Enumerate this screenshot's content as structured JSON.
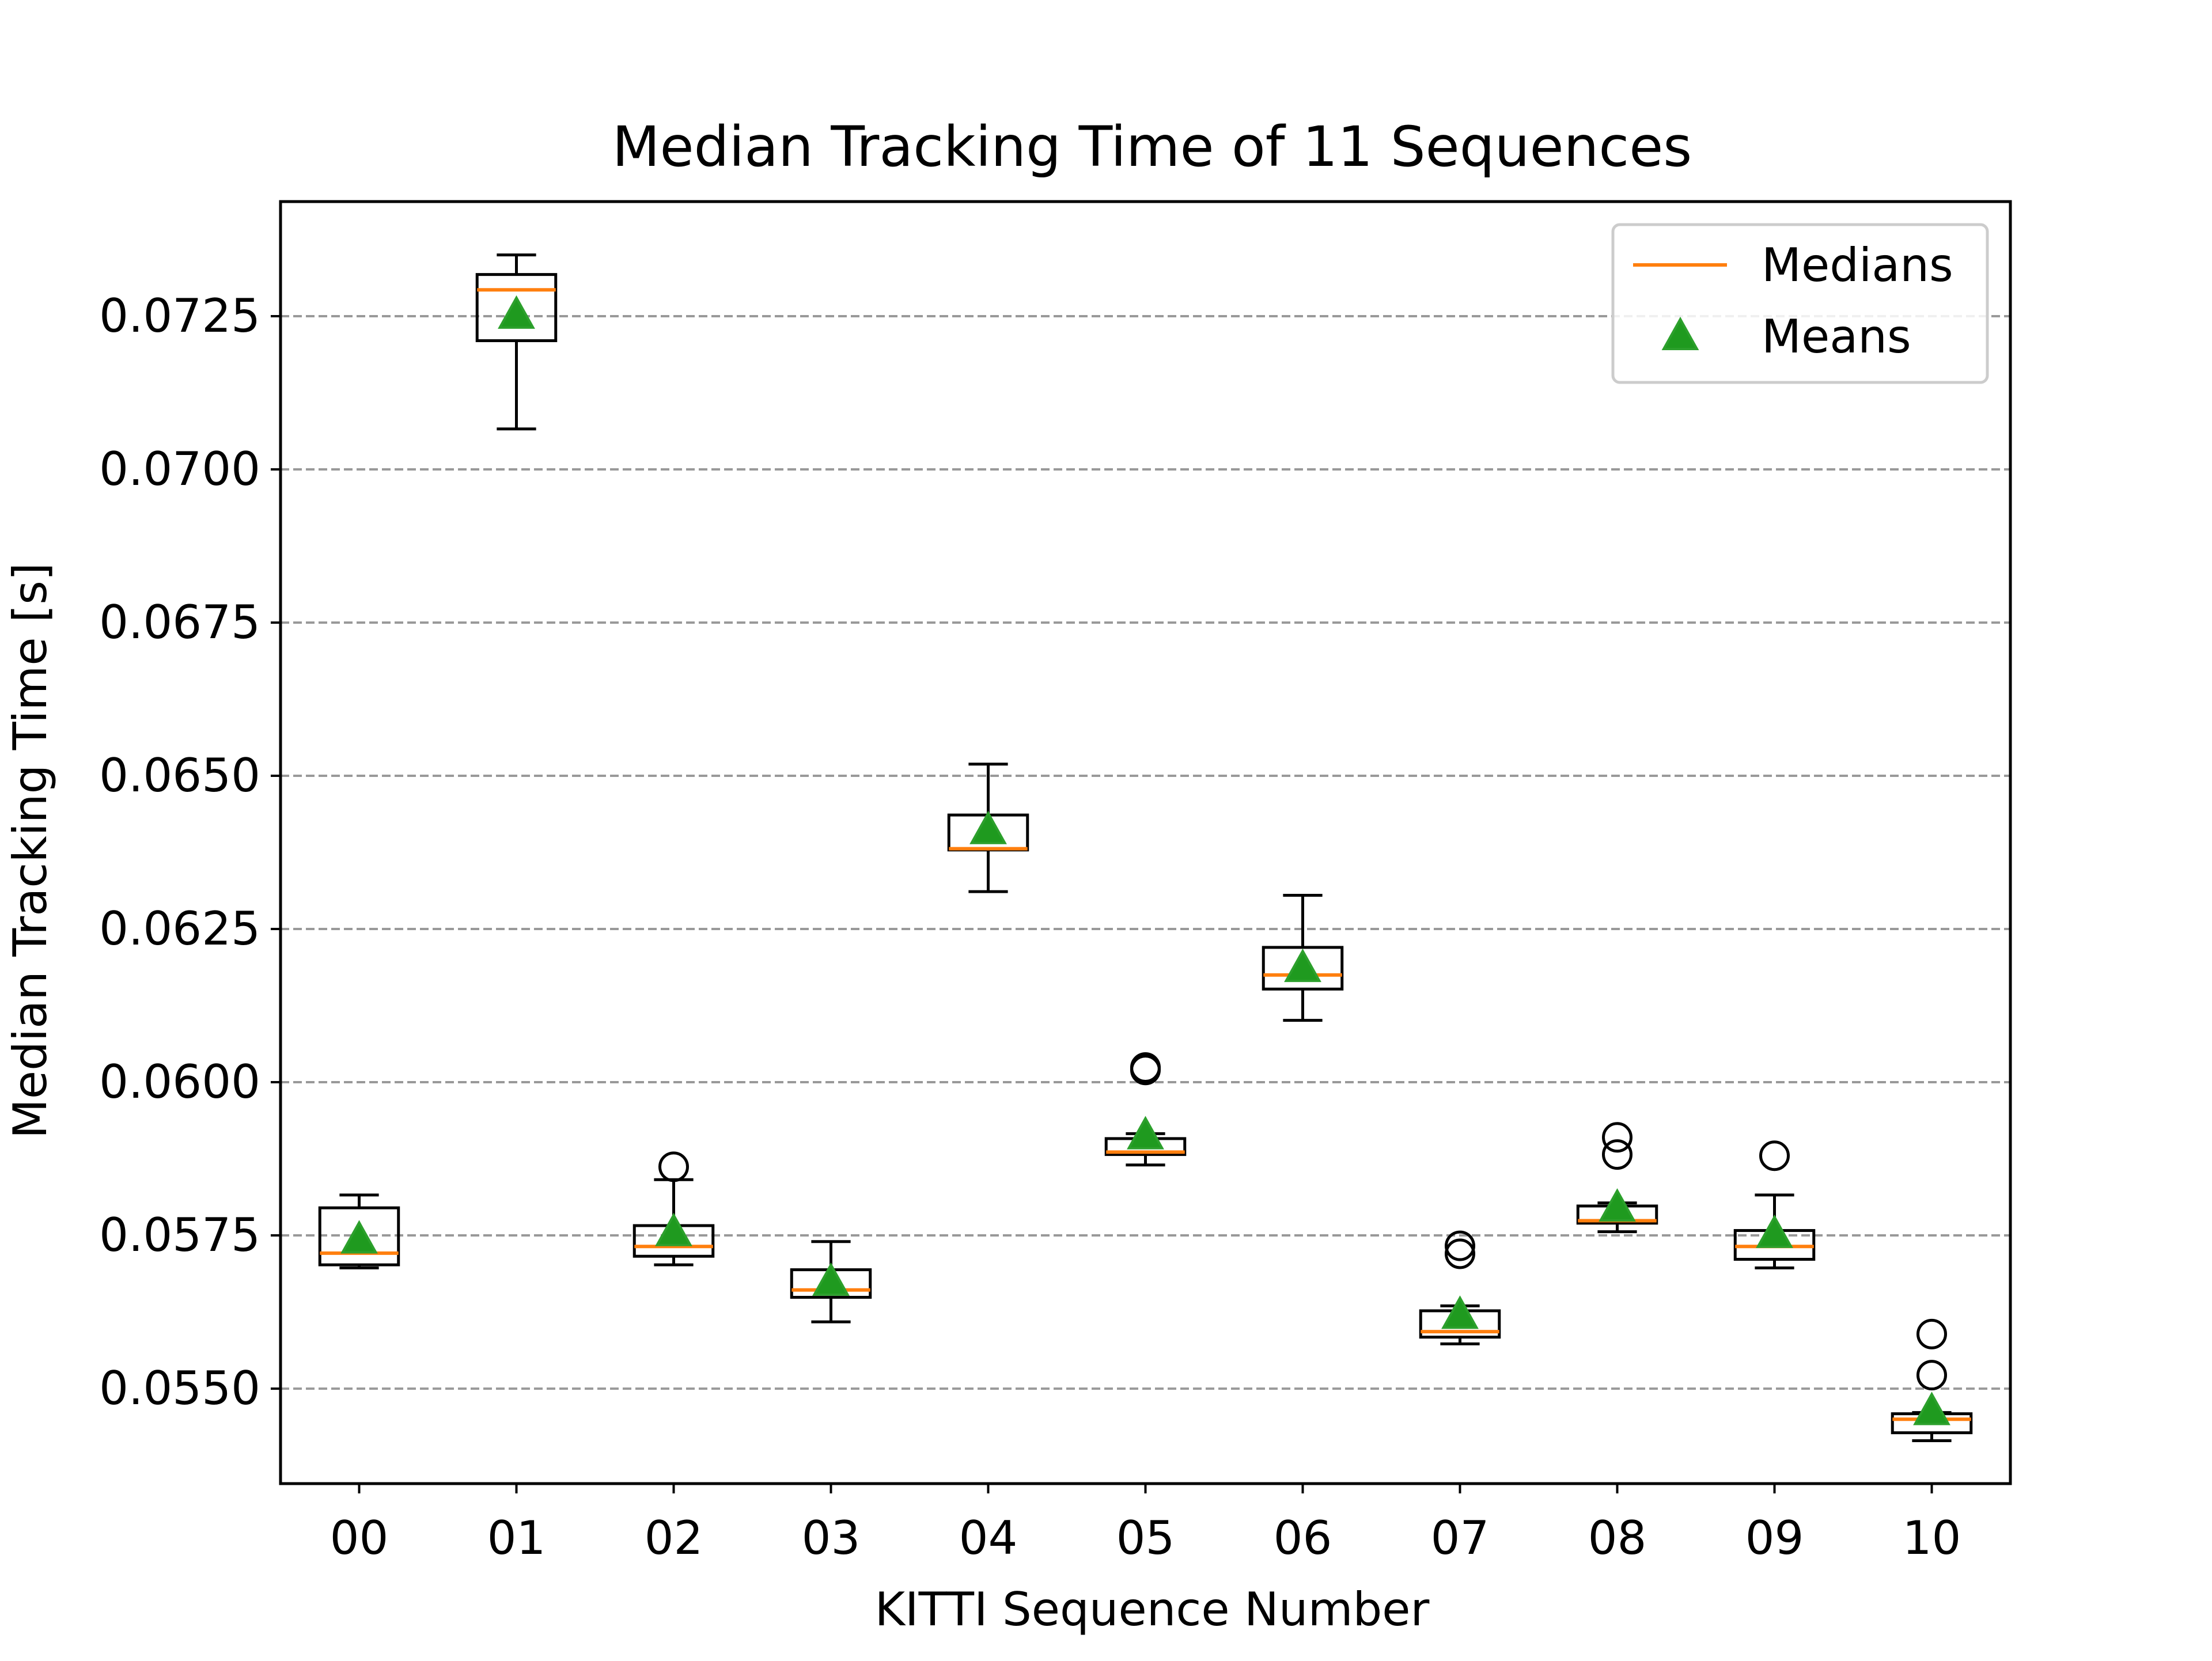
{
  "chart_data": {
    "type": "box",
    "title": "Median Tracking Time of 11 Sequences",
    "xlabel": "KITTI Sequence Number",
    "ylabel": "Median Tracking Time [s]",
    "ylim": [
      0.05345,
      0.07437
    ],
    "yticks": [
      0.055,
      0.0575,
      0.06,
      0.0625,
      0.065,
      0.0675,
      0.07,
      0.0725
    ],
    "ytick_labels": [
      "0.0550",
      "0.0575",
      "0.0600",
      "0.0625",
      "0.0650",
      "0.0675",
      "0.0700",
      "0.0725"
    ],
    "grid": "horizontal dashed",
    "legend": {
      "position": "top-right",
      "entries": [
        {
          "label": "Medians",
          "marker": "line",
          "color": "#ff7f0e"
        },
        {
          "label": "Means",
          "marker": "triangle",
          "color": "#2ca02c"
        }
      ]
    },
    "colors": {
      "median": "#ff7f0e",
      "mean": "#1f9a1f",
      "mean_edge": "#2ca02c",
      "box": "#000000",
      "grid": "#999999"
    },
    "categories": [
      "00",
      "01",
      "02",
      "03",
      "04",
      "05",
      "06",
      "07",
      "08",
      "09",
      "10"
    ],
    "boxes": [
      {
        "label": "00",
        "whisker_low": 0.05697,
        "q1": 0.05702,
        "median": 0.05721,
        "q3": 0.05795,
        "whisker_high": 0.05816,
        "mean": 0.05743,
        "outliers": []
      },
      {
        "label": "01",
        "whisker_low": 0.07066,
        "q1": 0.0721,
        "median": 0.07293,
        "q3": 0.07318,
        "whisker_high": 0.0735,
        "mean": 0.07252,
        "outliers": []
      },
      {
        "label": "02",
        "whisker_low": 0.05702,
        "q1": 0.05716,
        "median": 0.05732,
        "q3": 0.05766,
        "whisker_high": 0.05841,
        "mean": 0.05755,
        "outliers": [
          0.05862
        ]
      },
      {
        "label": "03",
        "whisker_low": 0.05609,
        "q1": 0.05649,
        "median": 0.05661,
        "q3": 0.05694,
        "whisker_high": 0.0574,
        "mean": 0.05674,
        "outliers": []
      },
      {
        "label": "04",
        "whisker_low": 0.06311,
        "q1": 0.06379,
        "median": 0.06381,
        "q3": 0.06436,
        "whisker_high": 0.06519,
        "mean": 0.06411,
        "outliers": []
      },
      {
        "label": "05",
        "whisker_low": 0.05865,
        "q1": 0.05882,
        "median": 0.05886,
        "q3": 0.05908,
        "whisker_high": 0.05916,
        "mean": 0.05913,
        "outliers": [
          0.0602,
          0.06024
        ]
      },
      {
        "label": "06",
        "whisker_low": 0.06101,
        "q1": 0.06152,
        "median": 0.06175,
        "q3": 0.0622,
        "whisker_high": 0.06305,
        "mean": 0.06186,
        "outliers": []
      },
      {
        "label": "07",
        "whisker_low": 0.05573,
        "q1": 0.05584,
        "median": 0.05593,
        "q3": 0.05627,
        "whisker_high": 0.05635,
        "mean": 0.0562,
        "outliers": [
          0.0572,
          0.05733
        ]
      },
      {
        "label": "08",
        "whisker_low": 0.05756,
        "q1": 0.0577,
        "median": 0.05774,
        "q3": 0.05798,
        "whisker_high": 0.05803,
        "mean": 0.05795,
        "outliers": [
          0.05882,
          0.0591
        ]
      },
      {
        "label": "09",
        "whisker_low": 0.05697,
        "q1": 0.05711,
        "median": 0.05732,
        "q3": 0.05758,
        "whisker_high": 0.05816,
        "mean": 0.05752,
        "outliers": [
          0.0588
        ]
      },
      {
        "label": "10",
        "whisker_low": 0.05415,
        "q1": 0.05428,
        "median": 0.0545,
        "q3": 0.05459,
        "whisker_high": 0.05461,
        "mean": 0.05463,
        "outliers": [
          0.05522,
          0.05589
        ]
      }
    ]
  }
}
